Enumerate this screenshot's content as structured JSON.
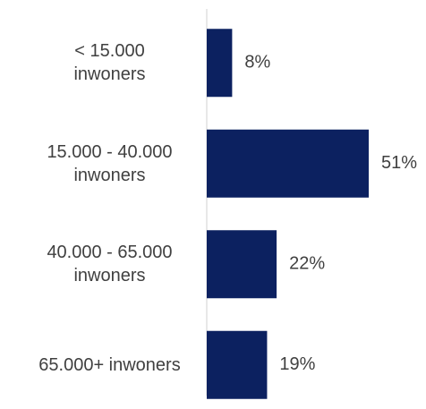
{
  "chart_data": {
    "type": "bar",
    "orientation": "horizontal",
    "categories": [
      "< 15.000 inwoners",
      "15.000 - 40.000 inwoners",
      "40.000 - 65.000 inwoners",
      "65.000+ inwoners"
    ],
    "values": [
      8,
      51,
      22,
      19
    ],
    "value_labels": [
      "8%",
      "51%",
      "22%",
      "19%"
    ],
    "color": "#0c2160"
  }
}
